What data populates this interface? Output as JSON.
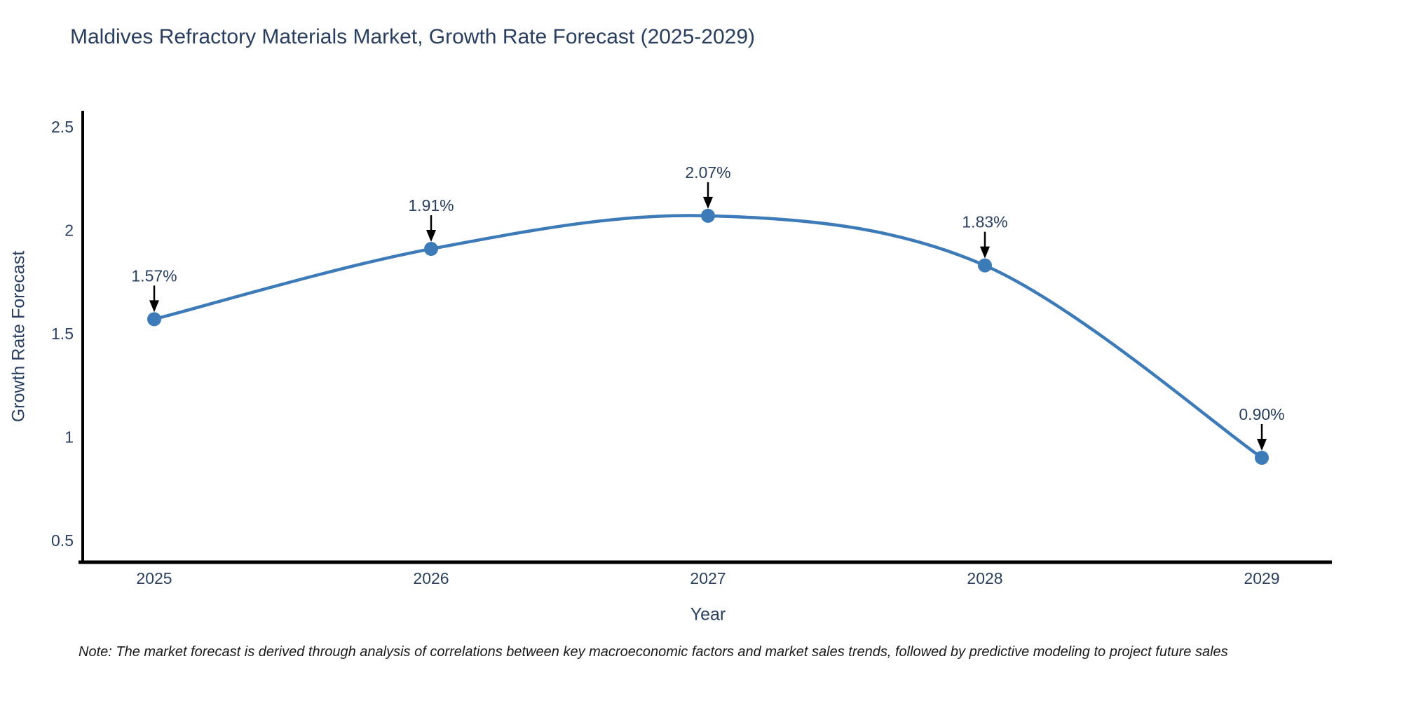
{
  "title": "Maldives Refractory Materials Market, Growth Rate Forecast (2025-2029)",
  "note": "Note: The market forecast is derived through analysis of correlations between key macroeconomic factors and market sales trends, followed by predictive modeling to project future sales",
  "chart_data": {
    "type": "line",
    "title": "Maldives Refractory Materials Market, Growth Rate Forecast (2025-2029)",
    "xlabel": "Year",
    "ylabel": "Growth Rate Forecast",
    "categories": [
      "2025",
      "2026",
      "2027",
      "2028",
      "2029"
    ],
    "series": [
      {
        "name": "Growth Rate Forecast",
        "values": [
          1.57,
          1.91,
          2.07,
          1.83,
          0.9
        ],
        "point_labels": [
          "1.57%",
          "1.91%",
          "2.07%",
          "1.83%",
          "0.90%"
        ]
      }
    ],
    "ylim": [
      0.4,
      2.58
    ],
    "yticks": [
      0.5,
      1.0,
      1.5,
      2.0,
      2.5
    ],
    "ytick_labels": [
      "0.5",
      "1",
      "1.5",
      "2",
      "2.5"
    ],
    "grid": false,
    "legend_position": "none",
    "line_shape": "spline",
    "annotation_style": "value-label-with-down-arrow",
    "colors": {
      "line": "#3d7bb8",
      "marker": "#3d7bb8",
      "arrow": "#000000",
      "axis": "#000000",
      "text": "#2a3f5f",
      "note_text": "#1a1a1a",
      "background": "#ffffff"
    }
  }
}
